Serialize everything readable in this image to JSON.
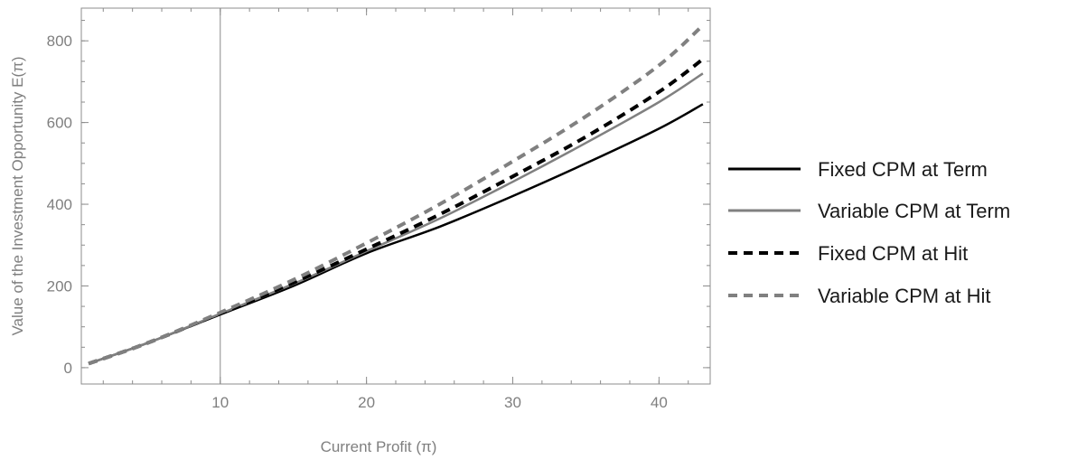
{
  "chart_data": {
    "type": "line",
    "xlabel": "Current Profit (π)",
    "ylabel": "Value of the Investment Opportunity E(π)",
    "xlim": [
      0.5,
      43.5
    ],
    "ylim": [
      -40,
      880
    ],
    "xticks": [
      10,
      20,
      30,
      40
    ],
    "yticks": [
      0,
      200,
      400,
      600,
      800
    ],
    "x_minor_step": 2,
    "y_minor_step": 50,
    "grid": false,
    "frame": true,
    "vertical_reference_line": 10,
    "legend_position": "right",
    "x": [
      1,
      5,
      10,
      15,
      20,
      25,
      30,
      35,
      40,
      43
    ],
    "series": [
      {
        "name": "Fixed CPM at Term",
        "color": "#000000",
        "dash": "solid",
        "values": [
          10,
          60,
          130,
          200,
          280,
          345,
          420,
          500,
          585,
          645
        ]
      },
      {
        "name": "Variable CPM at Term",
        "color": "#808080",
        "dash": "solid",
        "values": [
          10,
          60,
          132,
          205,
          285,
          365,
          455,
          550,
          650,
          720
        ]
      },
      {
        "name": "Fixed CPM at Hit",
        "color": "#000000",
        "dash": "dashed",
        "values": [
          10,
          60,
          133,
          208,
          290,
          375,
          468,
          565,
          675,
          755
        ]
      },
      {
        "name": "Variable CPM at Hit",
        "color": "#808080",
        "dash": "dashed",
        "values": [
          10,
          60,
          135,
          215,
          305,
          400,
          505,
          615,
          740,
          838
        ]
      }
    ]
  }
}
